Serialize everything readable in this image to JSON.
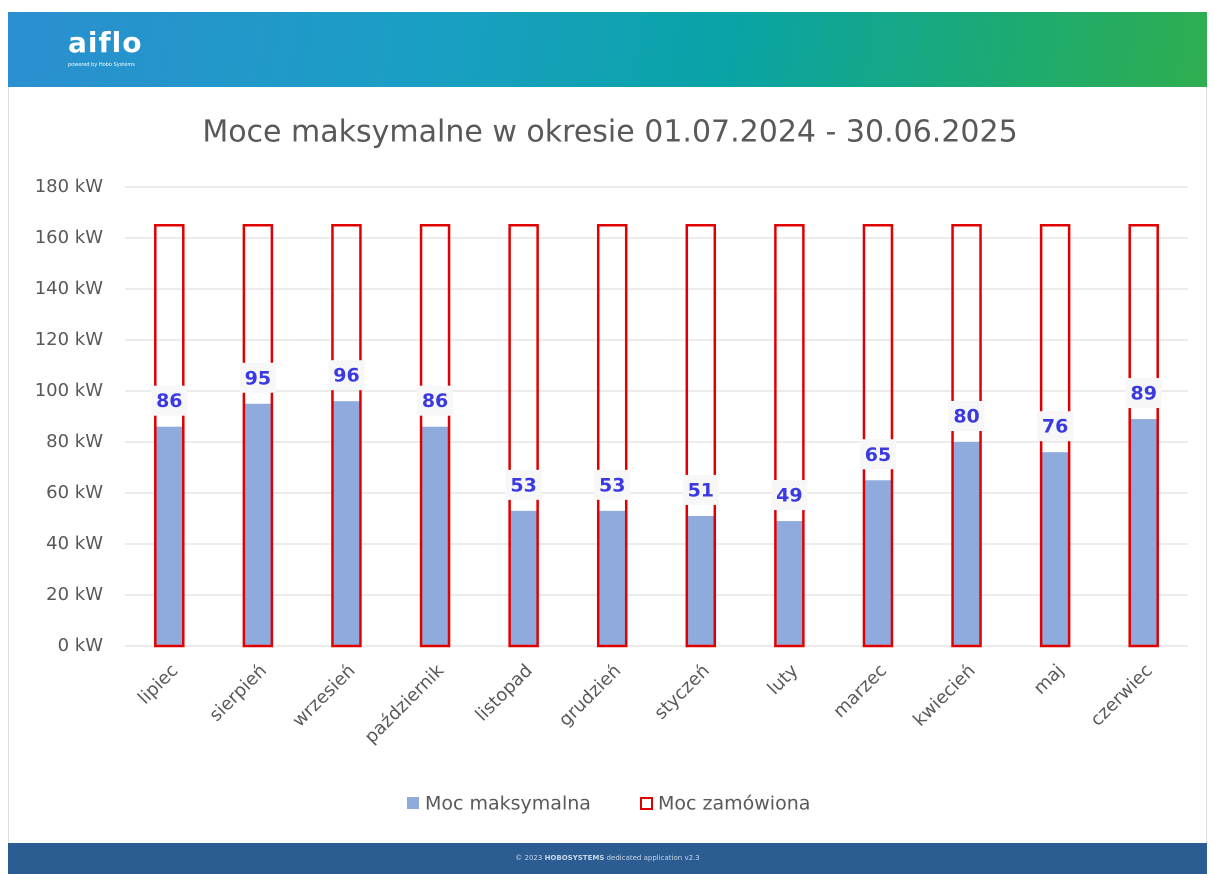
{
  "header": {
    "logo": "aiflo",
    "tagline": "powered by Hobo Systems"
  },
  "footer": {
    "prefix": "© 2023",
    "brand": "HOBOSYSTEMS",
    "suffix": "dedicated application v2.3"
  },
  "chart_data": {
    "type": "bar",
    "title": "Moce maksymalne w okresie 01.07.2024 - 30.06.2025",
    "categories": [
      "lipiec",
      "sierpień",
      "wrzesień",
      "październik",
      "listopad",
      "grudzień",
      "styczeń",
      "luty",
      "marzec",
      "kwiecień",
      "maj",
      "czerwiec"
    ],
    "series": [
      {
        "name": "Moc maksymalna",
        "color": "#8faadc",
        "values": [
          86,
          95,
          96,
          86,
          53,
          53,
          51,
          49,
          65,
          80,
          76,
          89
        ]
      },
      {
        "name": "Moc zamówiona",
        "color": "#e00000",
        "values": [
          165,
          165,
          165,
          165,
          165,
          165,
          165,
          165,
          165,
          165,
          165,
          165
        ]
      }
    ],
    "ylim": [
      0,
      180
    ],
    "yticks": [
      {
        "value": 0,
        "label": "0 kW"
      },
      {
        "value": 20,
        "label": "20 kW"
      },
      {
        "value": 40,
        "label": "40 kW"
      },
      {
        "value": 60,
        "label": "60 kW"
      },
      {
        "value": 80,
        "label": "80 kW"
      },
      {
        "value": 100,
        "label": "100 kW"
      },
      {
        "value": 120,
        "label": "120 kW"
      },
      {
        "value": 140,
        "label": "140 kW"
      },
      {
        "value": 160,
        "label": "160 kW"
      },
      {
        "value": 180,
        "label": "180 kW"
      }
    ],
    "grid": true,
    "legend": "bottom"
  }
}
